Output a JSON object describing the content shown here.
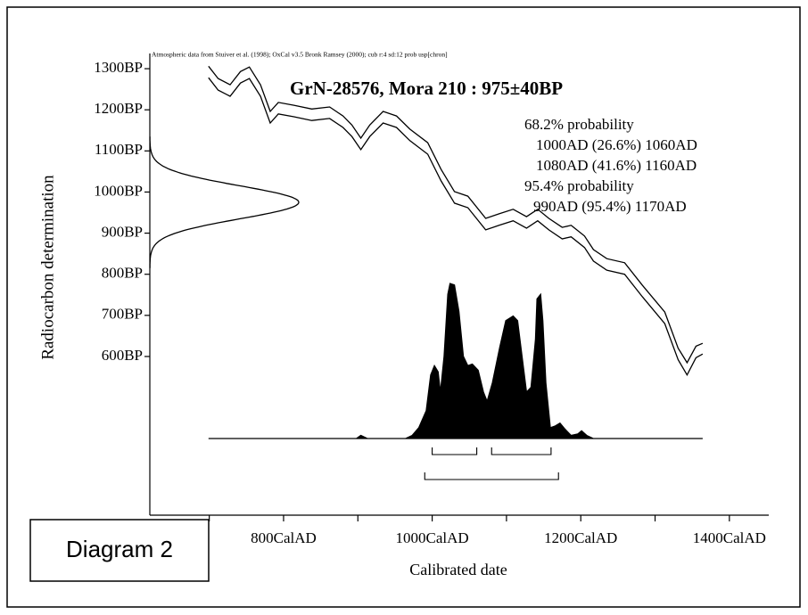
{
  "chart_data": {
    "type": "calibration",
    "note": "Atmospheric data from Stuiver et al. (1998); OxCal v3.5 Bronk Ramsey (2000); cub r:4 sd:12 prob usp[chron]",
    "title": "GrN-28576, Mora 210 : 975±40BP",
    "ylabel": "Radiocarbon determination",
    "xlabel": "Calibrated date",
    "caption": "Diagram 2",
    "date": {
      "mean": 975,
      "error": 40
    },
    "xlim": [
      620,
      1453
    ],
    "ylim": [
      214,
      1337
    ],
    "xticks": [
      {
        "value": 800,
        "label": "800CalAD"
      },
      {
        "value": 1000,
        "label": "1000CalAD"
      },
      {
        "value": 1200,
        "label": "1200CalAD"
      },
      {
        "value": 1400,
        "label": "1400CalAD"
      }
    ],
    "xminorticks": [
      700,
      900,
      1100,
      1300
    ],
    "yticks": [
      {
        "value": 1300,
        "label": "1300BP"
      },
      {
        "value": 1200,
        "label": "1200BP"
      },
      {
        "value": 1100,
        "label": "1100BP"
      },
      {
        "value": 1000,
        "label": "1000BP"
      },
      {
        "value": 900,
        "label": "900BP"
      },
      {
        "value": 800,
        "label": "800BP"
      },
      {
        "value": 700,
        "label": "700BP"
      },
      {
        "value": 600,
        "label": "600BP"
      }
    ],
    "calibration_curve": {
      "x": [
        699,
        712,
        728,
        742,
        754,
        769,
        782,
        793,
        814,
        838,
        862,
        880,
        892,
        904,
        916,
        934,
        952,
        970,
        994,
        1012,
        1030,
        1048,
        1072,
        1090,
        1109,
        1127,
        1142,
        1157,
        1175,
        1187,
        1205,
        1217,
        1235,
        1259,
        1283,
        1313,
        1331,
        1343,
        1355,
        1364
      ],
      "upper": [
        1306,
        1276,
        1261,
        1293,
        1304,
        1261,
        1196,
        1218,
        1211,
        1202,
        1207,
        1185,
        1163,
        1131,
        1163,
        1196,
        1185,
        1153,
        1120,
        1055,
        1001,
        990,
        936,
        947,
        958,
        940,
        958,
        936,
        914,
        919,
        893,
        860,
        838,
        828,
        773,
        708,
        620,
        585,
        625,
        632
      ],
      "lower": [
        1278,
        1248,
        1233,
        1265,
        1276,
        1233,
        1168,
        1190,
        1183,
        1174,
        1179,
        1157,
        1135,
        1103,
        1135,
        1168,
        1157,
        1125,
        1092,
        1027,
        973,
        962,
        908,
        919,
        930,
        912,
        930,
        908,
        886,
        891,
        865,
        832,
        810,
        800,
        745,
        680,
        592,
        555,
        597,
        606
      ],
      "color": "#000000"
    },
    "posterior": {
      "x": [
        699,
        898,
        904,
        913,
        964,
        973,
        982,
        992,
        998,
        1003,
        1008,
        1011,
        1016,
        1021,
        1024,
        1030,
        1036,
        1042,
        1048,
        1054,
        1062,
        1069,
        1074,
        1081,
        1091,
        1099,
        1109,
        1115,
        1121,
        1127,
        1133,
        1139,
        1141,
        1146,
        1149,
        1153,
        1159,
        1165,
        1172,
        1179,
        1187,
        1196,
        1201,
        1208,
        1217,
        1364
      ],
      "values": [
        0,
        0,
        0.02,
        0,
        0,
        0.02,
        0.07,
        0.18,
        0.41,
        0.47,
        0.43,
        0.3,
        0.53,
        0.93,
        1.0,
        0.99,
        0.82,
        0.53,
        0.47,
        0.48,
        0.44,
        0.3,
        0.24,
        0.36,
        0.59,
        0.76,
        0.79,
        0.76,
        0.53,
        0.3,
        0.33,
        0.64,
        0.9,
        0.93,
        0.76,
        0.36,
        0.07,
        0.08,
        0.1,
        0.06,
        0.02,
        0.03,
        0.05,
        0.02,
        0,
        0
      ],
      "color": "#000000"
    },
    "ranges": [
      {
        "level": "68.2% probability",
        "intervals": [
          {
            "from": 1000,
            "to": 1060,
            "label": "1000AD (26.6%) 1060AD"
          },
          {
            "from": 1080,
            "to": 1160,
            "label": "1080AD (41.6%) 1160AD"
          }
        ]
      },
      {
        "level": "95.4% probability",
        "intervals": [
          {
            "from": 990,
            "to": 1170,
            "label": "990AD (95.4%) 1170AD"
          }
        ]
      }
    ]
  }
}
